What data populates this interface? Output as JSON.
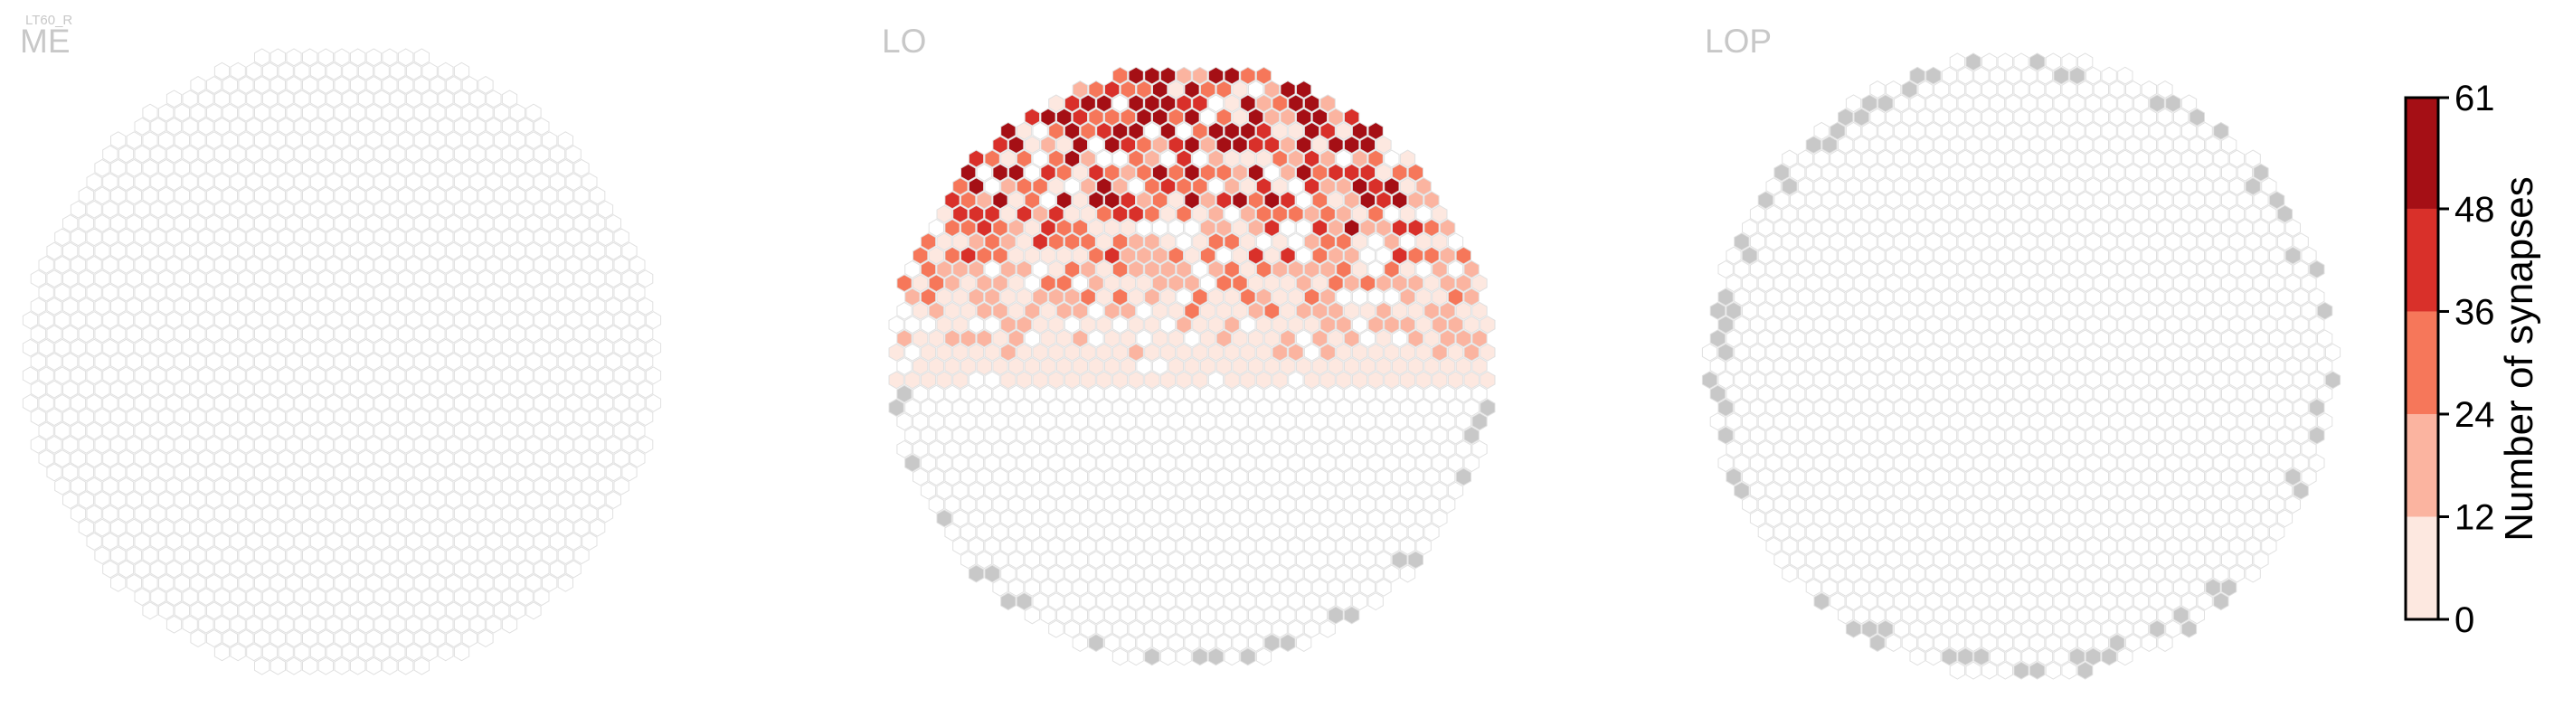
{
  "figure_tag": "LT60_R",
  "chart_data": {
    "type": "heatmap",
    "panels": [
      {
        "name": "ME",
        "background_hexes": 1070,
        "colored_hexes": [],
        "gray_hexes": []
      },
      {
        "name": "LO",
        "background_hexes": 1000,
        "colored_hexes_description": "synapse counts 1–61 concentrated in dorsal half",
        "colored_hexes": [],
        "gray_hexes": []
      },
      {
        "name": "LOP",
        "background_hexes": 1000,
        "colored_hexes": [],
        "gray_hexes": []
      }
    ],
    "colorbar": {
      "label": "Number of synapses",
      "ticks": [
        0,
        12,
        24,
        36,
        48,
        61
      ],
      "range": [
        0,
        61
      ],
      "bins": [
        {
          "from": 0,
          "to": 12,
          "color": "#fde8e0"
        },
        {
          "from": 12,
          "to": 24,
          "color": "#fbb4a0"
        },
        {
          "from": 24,
          "to": 36,
          "color": "#f6775a"
        },
        {
          "from": 36,
          "to": 48,
          "color": "#d9302a"
        },
        {
          "from": 48,
          "to": 61,
          "color": "#a50f15"
        }
      ]
    },
    "colors": {
      "empty_hex_stroke": "#e0e0e0",
      "no_data_hex": "#c8c8c8",
      "panel_label": "#c8c8c8"
    }
  }
}
